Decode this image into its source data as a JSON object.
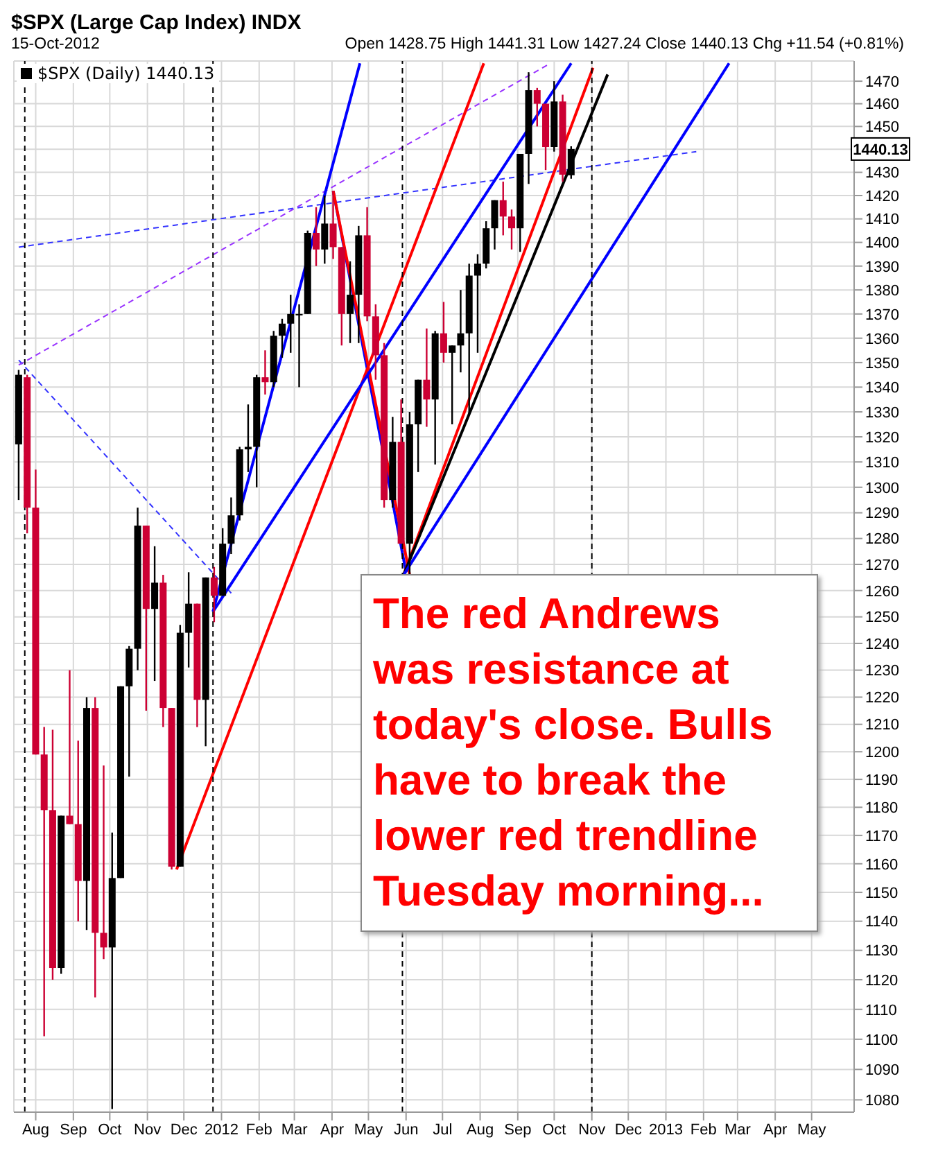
{
  "chart_data": {
    "type": "candlestick",
    "title": "$SPX (Large Cap Index) INDX",
    "subtitle": "15-Oct-2012",
    "annotations": [
      "Open 1428.75 High 1441.31 Low 1427.24 Close 1440.13 Chg +11.54 (+0.81%)",
      {
        "text": "1440.13",
        "y": 1440.13
      },
      "The red Andrews was resistance at today's close. Bulls have to break the lower red trendline Tuesday morning..."
    ],
    "log": "y",
    "grid": true,
    "legend": "top left",
    "marker": "none",
    "xlim": [
      "2011-07-14",
      "2013-06-05"
    ],
    "ylim": [
      1076,
      1479
    ],
    "xticks": [
      {
        "value": "2011-08-01",
        "label": "Aug"
      },
      {
        "value": "2011-09-01",
        "label": "Sep"
      },
      {
        "value": "2011-10-01",
        "label": "Oct"
      },
      {
        "value": "2011-11-01",
        "label": "Nov"
      },
      {
        "value": "2011-12-01",
        "label": "Dec"
      },
      {
        "value": "2012-01-01",
        "label": "2012"
      },
      {
        "value": "2012-02-01",
        "label": "Feb"
      },
      {
        "value": "2012-03-01",
        "label": "Mar"
      },
      {
        "value": "2012-04-01",
        "label": "Apr"
      },
      {
        "value": "2012-05-01",
        "label": "May"
      },
      {
        "value": "2012-06-01",
        "label": "Jun"
      },
      {
        "value": "2012-07-01",
        "label": "Jul"
      },
      {
        "value": "2012-08-01",
        "label": "Aug"
      },
      {
        "value": "2012-09-01",
        "label": "Sep"
      },
      {
        "value": "2012-10-01",
        "label": "Oct"
      },
      {
        "value": "2012-11-01",
        "label": "Nov"
      },
      {
        "value": "2012-12-01",
        "label": "Dec"
      },
      {
        "value": "2013-01-01",
        "label": "2013"
      },
      {
        "value": "2013-02-01",
        "label": "Feb"
      },
      {
        "value": "2013-03-01",
        "label": "Mar"
      },
      {
        "value": "2013-04-01",
        "label": "Apr"
      },
      {
        "value": "2013-05-01",
        "label": "May"
      }
    ],
    "yticks": [
      1080,
      1090,
      1100,
      1110,
      1120,
      1130,
      1140,
      1150,
      1160,
      1170,
      1180,
      1190,
      1200,
      1210,
      1220,
      1230,
      1240,
      1250,
      1260,
      1270,
      1280,
      1290,
      1300,
      1310,
      1320,
      1330,
      1340,
      1350,
      1360,
      1370,
      1380,
      1390,
      1400,
      1410,
      1420,
      1430,
      {
        "value": 1440,
        "label": null
      },
      1450,
      1460,
      1470
    ],
    "ref_lines": [
      {
        "axis": "x",
        "value": "2011-07-23",
        "color": "#000000",
        "line_style": "dashed"
      },
      {
        "axis": "x",
        "value": "2011-12-25",
        "color": "#000000",
        "line_style": "dashed"
      },
      {
        "axis": "x",
        "value": "2012-05-29",
        "color": "#000000",
        "line_style": "dashed"
      },
      {
        "axis": "x",
        "value": "2012-11-01",
        "color": "#000000",
        "line_style": "dashed"
      }
    ],
    "series": [
      {
        "type": "line",
        "color": "#3333ff",
        "line_style": "dashed",
        "x": [
          "2011-07-18",
          "2012-01-09"
        ],
        "values": [
          1351,
          1259
        ]
      },
      {
        "type": "line",
        "color": "#3333ff",
        "line_style": "dashed",
        "x": [
          "2011-07-18",
          "2013-01-26"
        ],
        "values": [
          1398,
          1439
        ]
      },
      {
        "type": "line",
        "color": "#9933ff",
        "line_style": "dashed",
        "x": [
          "2011-07-18",
          "2012-09-28"
        ],
        "values": [
          1349,
          1478
        ]
      },
      {
        "type": "line",
        "color": "#0000ff",
        "line_style": "solid",
        "x": [
          "2012-04-02",
          "2012-06-01"
        ],
        "values": [
          1422,
          1267
        ]
      },
      {
        "type": "line",
        "color": "#ff0000",
        "line_style": "solid",
        "x": [
          "2012-04-02",
          "2012-06-04"
        ],
        "values": [
          1422,
          1266
        ]
      },
      {
        "type": "line",
        "color": "#ff0000",
        "line_style": "solid",
        "x": [
          "2012-05-30",
          "2012-11-02"
        ],
        "values": [
          1266,
          1476
        ]
      },
      {
        "type": "line",
        "color": "#000000",
        "line_style": "solid",
        "x": [
          "2012-05-30",
          "2012-11-14"
        ],
        "values": [
          1266,
          1473
        ]
      },
      {
        "type": "line",
        "color": "#0000ff",
        "line_style": "solid",
        "x": [
          "2012-05-30",
          "2013-02-22"
        ],
        "values": [
          1266,
          1478
        ]
      },
      {
        "type": "line",
        "color": "#ff0000",
        "line_style": "solid",
        "x": [
          "2011-11-25",
          "2012-08-04"
        ],
        "values": [
          1158,
          1478
        ]
      },
      {
        "type": "line",
        "color": "#0000ff",
        "line_style": "solid",
        "x": [
          "2011-12-25",
          "2012-10-15"
        ],
        "values": [
          1252,
          1478
        ]
      },
      {
        "type": "line",
        "color": "#0000ff",
        "line_style": "solid",
        "x": [
          "2011-12-25",
          "2012-04-24"
        ],
        "values": [
          1252,
          1478
        ]
      },
      {
        "type": "candlestick",
        "name": "$SPX (Daily) 1440.13",
        "color": "#000000",
        "x": [
          "2011-07-18",
          "2011-07-25",
          "2011-08-01",
          "2011-08-08",
          "2011-08-15",
          "2011-08-22",
          "2011-08-29",
          "2011-09-05",
          "2011-09-12",
          "2011-09-19",
          "2011-09-26",
          "2011-10-03",
          "2011-10-10",
          "2011-10-17",
          "2011-10-24",
          "2011-10-31",
          "2011-11-07",
          "2011-11-14",
          "2011-11-21",
          "2011-11-28",
          "2011-12-05",
          "2011-12-12",
          "2011-12-19",
          "2011-12-26",
          "2012-01-02",
          "2012-01-09",
          "2012-01-16",
          "2012-01-23",
          "2012-01-30",
          "2012-02-06",
          "2012-02-13",
          "2012-02-20",
          "2012-02-27",
          "2012-03-05",
          "2012-03-12",
          "2012-03-19",
          "2012-03-26",
          "2012-04-02",
          "2012-04-09",
          "2012-04-16",
          "2012-04-23",
          "2012-04-30",
          "2012-05-07",
          "2012-05-14",
          "2012-05-21",
          "2012-05-28",
          "2012-06-04",
          "2012-06-11",
          "2012-06-18",
          "2012-06-25",
          "2012-07-02",
          "2012-07-09",
          "2012-07-16",
          "2012-07-23",
          "2012-07-30",
          "2012-08-06",
          "2012-08-13",
          "2012-08-20",
          "2012-08-27",
          "2012-09-03",
          "2012-09-10",
          "2012-09-17",
          "2012-09-24",
          "2012-10-01",
          "2012-10-08",
          "2012-10-15"
        ],
        "ohlc": [
          [
            1317,
            1347,
            1295,
            1345
          ],
          [
            1344,
            1345,
            1282,
            1292
          ],
          [
            1292,
            1307,
            1199,
            1199
          ],
          [
            1199,
            1209,
            1101,
            1179
          ],
          [
            1179,
            1208,
            1120,
            1124
          ],
          [
            1124,
            1177,
            1122,
            1177
          ],
          [
            1177,
            1230,
            1174,
            1174
          ],
          [
            1174,
            1204,
            1140,
            1154
          ],
          [
            1154,
            1220,
            1137,
            1216
          ],
          [
            1216,
            1220,
            1114,
            1136
          ],
          [
            1136,
            1195,
            1127,
            1131
          ],
          [
            1131,
            1171,
            1077,
            1155
          ],
          [
            1155,
            1224,
            1155,
            1224
          ],
          [
            1224,
            1239,
            1191,
            1238
          ],
          [
            1238,
            1292,
            1230,
            1285
          ],
          [
            1285,
            1285,
            1215,
            1253
          ],
          [
            1253,
            1277,
            1226,
            1263
          ],
          [
            1263,
            1266,
            1209,
            1216
          ],
          [
            1216,
            1216,
            1158,
            1159
          ],
          [
            1159,
            1247,
            1159,
            1244
          ],
          [
            1244,
            1267,
            1231,
            1255
          ],
          [
            1255,
            1255,
            1209,
            1219
          ],
          [
            1219,
            1265,
            1202,
            1265
          ],
          [
            1265,
            1269,
            1248,
            1258
          ],
          [
            1258,
            1284,
            1258,
            1278
          ],
          [
            1278,
            1296,
            1274,
            1289
          ],
          [
            1289,
            1316,
            1287,
            1315
          ],
          [
            1315,
            1333,
            1306,
            1316
          ],
          [
            1316,
            1345,
            1300,
            1344
          ],
          [
            1344,
            1355,
            1337,
            1342
          ],
          [
            1342,
            1363,
            1340,
            1361
          ],
          [
            1361,
            1368,
            1352,
            1366
          ],
          [
            1366,
            1378,
            1354,
            1370
          ],
          [
            1370,
            1374,
            1340,
            1370
          ],
          [
            1370,
            1405,
            1370,
            1404
          ],
          [
            1404,
            1415,
            1390,
            1397
          ],
          [
            1397,
            1420,
            1391,
            1408
          ],
          [
            1408,
            1422,
            1393,
            1398
          ],
          [
            1398,
            1398,
            1357,
            1370
          ],
          [
            1370,
            1392,
            1358,
            1378
          ],
          [
            1378,
            1407,
            1358,
            1403
          ],
          [
            1403,
            1415,
            1367,
            1369
          ],
          [
            1369,
            1374,
            1343,
            1353
          ],
          [
            1353,
            1358,
            1292,
            1295
          ],
          [
            1295,
            1328,
            1292,
            1318
          ],
          [
            1318,
            1335,
            1278,
            1278
          ],
          [
            1278,
            1330,
            1266,
            1325
          ],
          [
            1325,
            1343,
            1306,
            1343
          ],
          [
            1343,
            1364,
            1324,
            1335
          ],
          [
            1335,
            1363,
            1309,
            1362
          ],
          [
            1362,
            1375,
            1350,
            1354
          ],
          [
            1354,
            1357,
            1325,
            1357
          ],
          [
            1357,
            1380,
            1346,
            1362
          ],
          [
            1362,
            1391,
            1329,
            1386
          ],
          [
            1386,
            1395,
            1354,
            1391
          ],
          [
            1391,
            1409,
            1389,
            1406
          ],
          [
            1406,
            1418,
            1397,
            1418
          ],
          [
            1418,
            1426,
            1403,
            1411
          ],
          [
            1411,
            1414,
            1397,
            1406
          ],
          [
            1406,
            1438,
            1396,
            1438
          ],
          [
            1438,
            1474,
            1425,
            1466
          ],
          [
            1466,
            1467,
            1450,
            1460
          ],
          [
            1460,
            1460,
            1431,
            1441
          ],
          [
            1441,
            1470,
            1439,
            1461
          ],
          [
            1461,
            1464,
            1426,
            1429
          ],
          [
            1428.75,
            1441.31,
            1427.24,
            1440.13
          ]
        ],
        "colors": [
          "#000000",
          "#cc0033",
          "#cc0033",
          "#cc0033",
          "#cc0033",
          "#000000",
          "#cc0033",
          "#cc0033",
          "#000000",
          "#cc0033",
          "#cc0033",
          "#000000",
          "#000000",
          "#000000",
          "#000000",
          "#cc0033",
          "#000000",
          "#cc0033",
          "#cc0033",
          "#000000",
          "#000000",
          "#cc0033",
          "#000000",
          "#cc0033",
          "#000000",
          "#000000",
          "#000000",
          "#000000",
          "#000000",
          "#cc0033",
          "#000000",
          "#000000",
          "#000000",
          "#000000",
          "#000000",
          "#cc0033",
          "#000000",
          "#cc0033",
          "#cc0033",
          "#000000",
          "#000000",
          "#cc0033",
          "#cc0033",
          "#cc0033",
          "#000000",
          "#cc0033",
          "#000000",
          "#000000",
          "#cc0033",
          "#000000",
          "#cc0033",
          "#000000",
          "#000000",
          "#000000",
          "#000000",
          "#000000",
          "#000000",
          "#cc0033",
          "#cc0033",
          "#000000",
          "#000000",
          "#cc0033",
          "#cc0033",
          "#000000",
          "#cc0033",
          "#000000"
        ]
      }
    ]
  }
}
